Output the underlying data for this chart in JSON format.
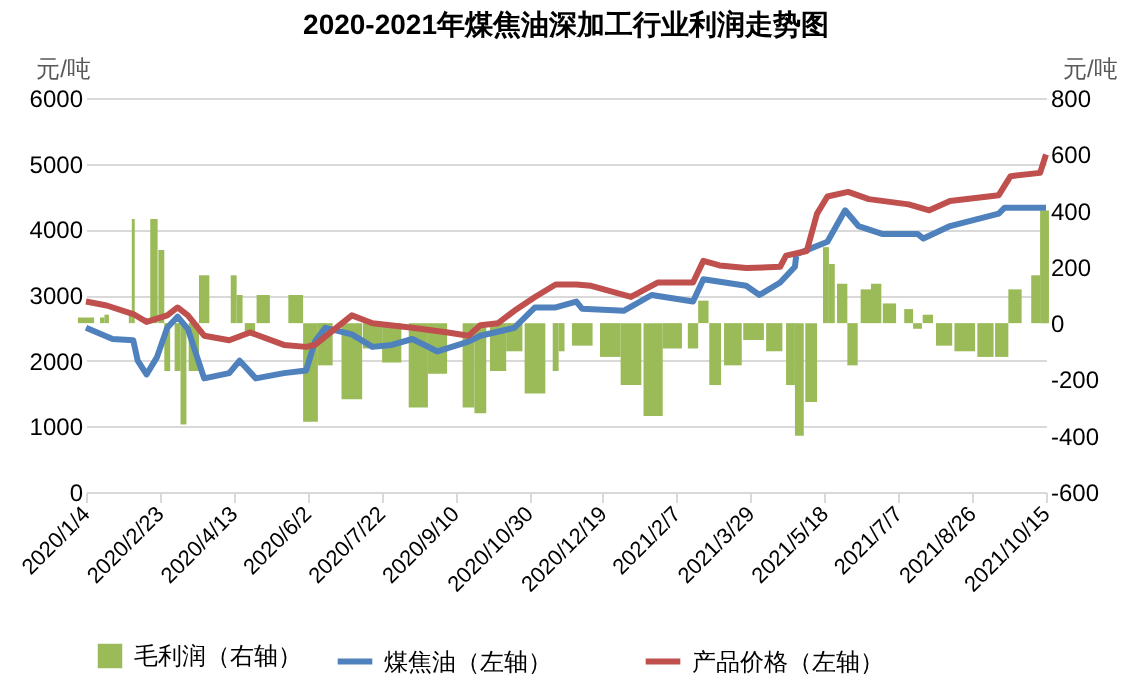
{
  "chart_data": {
    "type": "line",
    "title": "2020-2021年煤焦油深加工行业利润走势图",
    "ylabel": "元/吨",
    "y2label": "元/吨",
    "xlim": [
      "2020-01-04",
      "2021-10-15"
    ],
    "xticks": [
      {
        "value": "2020-01-04",
        "label": "2020/1/4"
      },
      {
        "value": "2020-02-23",
        "label": "2020/2/23"
      },
      {
        "value": "2020-04-13",
        "label": "2020/4/13"
      },
      {
        "value": "2020-06-02",
        "label": "2020/6/2"
      },
      {
        "value": "2020-07-22",
        "label": "2020/7/22"
      },
      {
        "value": "2020-09-10",
        "label": "2020/9/10"
      },
      {
        "value": "2020-10-30",
        "label": "2020/10/30"
      },
      {
        "value": "2020-12-19",
        "label": "2020/12/19"
      },
      {
        "value": "2021-02-07",
        "label": "2021/2/7"
      },
      {
        "value": "2021-03-29",
        "label": "2021/3/29"
      },
      {
        "value": "2021-05-18",
        "label": "2021/5/18"
      },
      {
        "value": "2021-07-07",
        "label": "2021/7/7"
      },
      {
        "value": "2021-08-26",
        "label": "2021/8/26"
      },
      {
        "value": "2021-10-15",
        "label": "2021/10/15"
      }
    ],
    "ylim": [
      0,
      6000
    ],
    "yticks": [
      0,
      1000,
      2000,
      3000,
      4000,
      5000,
      6000
    ],
    "y2lim": [
      -600,
      800
    ],
    "y2ticks": [
      -600,
      -400,
      -200,
      0,
      200,
      400,
      600,
      800
    ],
    "grid": "y",
    "legend": "bottom",
    "series": [
      {
        "name": "毛利润（右轴）",
        "type": "bar",
        "axis": "y2",
        "color": "#9bbb59",
        "x": [
          "2020-01-04",
          "2020-01-15",
          "2020-01-18",
          "2020-02-03",
          "2020-02-05",
          "2020-02-19",
          "2020-02-24",
          "2020-02-28",
          "2020-03-06",
          "2020-03-10",
          "2020-03-17",
          "2020-03-24",
          "2020-04-13",
          "2020-04-17",
          "2020-04-24",
          "2020-05-03",
          "2020-05-25",
          "2020-06-04",
          "2020-06-14",
          "2020-07-02",
          "2020-07-16",
          "2020-07-29",
          "2020-08-16",
          "2020-08-29",
          "2020-09-19",
          "2020-09-27",
          "2020-10-09",
          "2020-10-20",
          "2020-11-03",
          "2020-11-17",
          "2020-11-21",
          "2020-12-05",
          "2020-12-24",
          "2021-01-07",
          "2021-01-22",
          "2021-02-04",
          "2021-02-18",
          "2021-02-25",
          "2021-03-05",
          "2021-03-17",
          "2021-03-31",
          "2021-04-14",
          "2021-04-25",
          "2021-05-01",
          "2021-05-09",
          "2021-05-19",
          "2021-05-23",
          "2021-05-30",
          "2021-06-06",
          "2021-06-15",
          "2021-06-22",
          "2021-07-01",
          "2021-07-14",
          "2021-07-20",
          "2021-07-27",
          "2021-08-07",
          "2021-08-21",
          "2021-09-04",
          "2021-09-15",
          "2021-09-24",
          "2021-10-08",
          "2021-10-14"
        ],
        "values": [
          20,
          20,
          30,
          30,
          370,
          370,
          260,
          -170,
          -170,
          -360,
          -170,
          170,
          170,
          100,
          -40,
          100,
          100,
          -350,
          -150,
          -270,
          -90,
          -140,
          -300,
          -180,
          -300,
          -320,
          -170,
          -100,
          -250,
          -170,
          -100,
          -80,
          -120,
          -220,
          -330,
          -90,
          -90,
          80,
          -220,
          -150,
          -60,
          -100,
          -220,
          -400,
          -280,
          270,
          210,
          140,
          -150,
          120,
          140,
          70,
          50,
          -20,
          30,
          -80,
          -100,
          -120,
          -120,
          120,
          170,
          400
        ]
      },
      {
        "name": "煤焦油（左轴）",
        "color": "#4f81bd",
        "x": [
          "2020-01-04",
          "2020-01-22",
          "2020-02-05",
          "2020-02-08",
          "2020-02-14",
          "2020-02-21",
          "2020-02-28",
          "2020-03-06",
          "2020-03-13",
          "2020-03-24",
          "2020-04-10",
          "2020-04-17",
          "2020-04-28",
          "2020-05-17",
          "2020-06-01",
          "2020-06-07",
          "2020-06-14",
          "2020-07-02",
          "2020-07-16",
          "2020-07-29",
          "2020-08-12",
          "2020-08-29",
          "2020-09-19",
          "2020-09-27",
          "2020-10-20",
          "2020-11-03",
          "2020-11-17",
          "2020-12-01",
          "2020-12-05",
          "2021-01-02",
          "2021-01-21",
          "2021-02-18",
          "2021-02-25",
          "2021-03-26",
          "2021-04-04",
          "2021-04-18",
          "2021-04-28",
          "2021-04-29",
          "2021-05-20",
          "2021-06-01",
          "2021-06-10",
          "2021-06-26",
          "2021-07-20",
          "2021-07-24",
          "2021-08-11",
          "2021-09-13",
          "2021-09-17",
          "2021-10-15"
        ],
        "values": [
          2500,
          2330,
          2310,
          2000,
          1790,
          2050,
          2500,
          2670,
          2480,
          1730,
          1810,
          2000,
          1730,
          1810,
          1850,
          2290,
          2500,
          2400,
          2210,
          2240,
          2330,
          2140,
          2290,
          2380,
          2500,
          2810,
          2810,
          2900,
          2790,
          2760,
          3000,
          2900,
          3240,
          3140,
          3000,
          3190,
          3430,
          3620,
          3810,
          4290,
          4050,
          3930,
          3930,
          3860,
          4050,
          4240,
          4330,
          4330
        ]
      },
      {
        "name": "产品价格（左轴）",
        "color": "#c0504d",
        "x": [
          "2020-01-04",
          "2020-01-18",
          "2020-02-05",
          "2020-02-14",
          "2020-02-28",
          "2020-03-06",
          "2020-03-13",
          "2020-03-24",
          "2020-04-10",
          "2020-04-24",
          "2020-05-17",
          "2020-06-01",
          "2020-06-07",
          "2020-07-02",
          "2020-07-16",
          "2020-08-12",
          "2020-09-05",
          "2020-09-19",
          "2020-09-27",
          "2020-10-09",
          "2020-10-20",
          "2020-11-03",
          "2020-11-17",
          "2020-12-01",
          "2020-12-11",
          "2021-01-07",
          "2021-01-25",
          "2021-02-18",
          "2021-02-25",
          "2021-03-08",
          "2021-03-26",
          "2021-04-18",
          "2021-04-22",
          "2021-05-06",
          "2021-05-13",
          "2021-05-20",
          "2021-06-03",
          "2021-06-17",
          "2021-07-14",
          "2021-07-28",
          "2021-08-11",
          "2021-09-13",
          "2021-09-21",
          "2021-10-11",
          "2021-10-15"
        ],
        "values": [
          2900,
          2840,
          2710,
          2590,
          2690,
          2810,
          2690,
          2380,
          2310,
          2430,
          2240,
          2210,
          2240,
          2690,
          2570,
          2500,
          2430,
          2380,
          2540,
          2570,
          2760,
          2970,
          3160,
          3160,
          3140,
          2970,
          3190,
          3190,
          3520,
          3450,
          3410,
          3430,
          3600,
          3670,
          4240,
          4500,
          4570,
          4460,
          4380,
          4290,
          4430,
          4520,
          4810,
          4860,
          5140
        ]
      }
    ]
  }
}
